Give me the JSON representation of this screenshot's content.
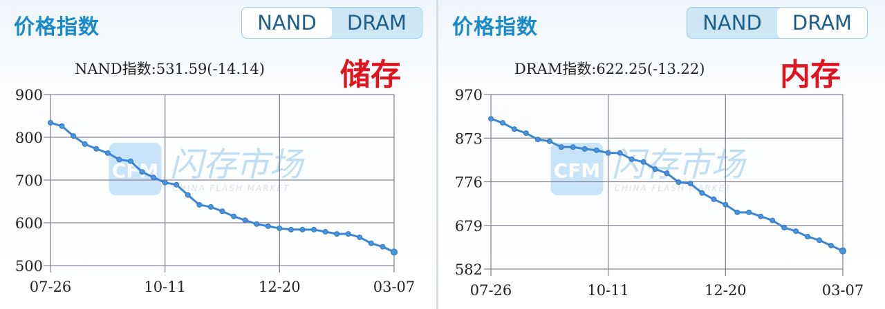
{
  "panels": [
    {
      "title": "价格指数",
      "toggle": {
        "options": [
          "NAND",
          "DRAM"
        ],
        "active": "NAND"
      },
      "subtitle": "NAND指数:531.59(-14.14)",
      "tag": "储存",
      "watermark": {
        "logo": "CFM",
        "cn": "闪存市场",
        "en": "CHINA FLASH MARKET"
      }
    },
    {
      "title": "价格指数",
      "toggle": {
        "options": [
          "NAND",
          "DRAM"
        ],
        "active": "DRAM"
      },
      "subtitle": "DRAM指数:622.25(-13.22)",
      "tag": "内存",
      "watermark": {
        "logo": "CFM",
        "cn": "闪存市场",
        "en": "CHINA FLASH MARKET"
      }
    }
  ],
  "colors": {
    "line": "#3a86d4",
    "title": "#1a8ac9",
    "tag": "#e0141e",
    "grid": "#8a8494"
  },
  "chart_data": [
    {
      "type": "line",
      "title": "NAND指数:531.59(-14.14)",
      "xlabel": "",
      "ylabel": "",
      "x_ticks": [
        "07-26",
        "10-11",
        "12-20",
        "03-07"
      ],
      "y_ticks": [
        900,
        800,
        700,
        600,
        500
      ],
      "ylim": [
        500,
        900
      ],
      "grid": true,
      "legend": null,
      "series": [
        {
          "name": "NAND",
          "values": [
            834,
            826,
            803,
            784,
            773,
            763,
            748,
            744,
            719,
            706,
            694,
            689,
            665,
            642,
            637,
            627,
            615,
            606,
            597,
            592,
            587,
            584,
            584,
            584,
            579,
            574,
            574,
            566,
            552,
            544,
            531.59
          ]
        }
      ]
    },
    {
      "type": "line",
      "title": "DRAM指数:622.25(-13.22)",
      "xlabel": "",
      "ylabel": "",
      "x_ticks": [
        "07-26",
        "10-11",
        "12-20",
        "03-07"
      ],
      "y_ticks": [
        970,
        873,
        776,
        679,
        582
      ],
      "ylim": [
        582,
        970
      ],
      "grid": true,
      "legend": null,
      "series": [
        {
          "name": "DRAM",
          "values": [
            916,
            907,
            893,
            884,
            870,
            866,
            853,
            853,
            849,
            846,
            840,
            840,
            826,
            820,
            804,
            795,
            775,
            772,
            751,
            737,
            725,
            708,
            708,
            699,
            690,
            674,
            666,
            654,
            646,
            634,
            622.25
          ]
        }
      ]
    }
  ]
}
